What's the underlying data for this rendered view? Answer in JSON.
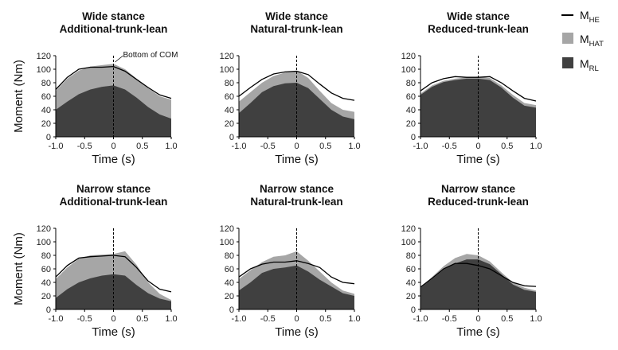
{
  "chart_data": {
    "type": "area",
    "ylabel": "Moment (Nm)",
    "xlabel": "Time (s)",
    "ylim": [
      0,
      120
    ],
    "xlim": [
      -1.0,
      1.0
    ],
    "yticks": [
      "0",
      "20",
      "40",
      "60",
      "80",
      "100",
      "120"
    ],
    "xticks": [
      "-1.0",
      "-0.5",
      "0",
      "0.5",
      "1.0"
    ],
    "legend": [
      {
        "name": "M",
        "sub": "HE",
        "style": "line",
        "color": "#000000"
      },
      {
        "name": "M",
        "sub": "HAT",
        "style": "fill",
        "color": "#a6a6a6"
      },
      {
        "name": "M",
        "sub": "RL",
        "style": "fill",
        "color": "#404040"
      }
    ],
    "annotation": {
      "text": "Bottom of COM",
      "x": 0.0
    },
    "x": [
      -1.0,
      -0.8,
      -0.6,
      -0.4,
      -0.2,
      0.0,
      0.2,
      0.4,
      0.6,
      0.8,
      1.0
    ],
    "panels": [
      {
        "id": "wide-additional",
        "title1": "Wide stance",
        "title2": "Additional-trunk-lean",
        "M_HE": [
          70,
          88,
          100,
          103,
          103,
          104,
          97,
          85,
          73,
          62,
          57
        ],
        "M_TOTAL": [
          68,
          86,
          98,
          104,
          106,
          108,
          100,
          86,
          72,
          60,
          55
        ],
        "M_RL": [
          40,
          52,
          63,
          70,
          74,
          76,
          70,
          58,
          44,
          33,
          27
        ]
      },
      {
        "id": "wide-natural",
        "title1": "Wide stance",
        "title2": "Natural-trunk-lean",
        "M_HE": [
          60,
          73,
          85,
          93,
          96,
          97,
          92,
          78,
          65,
          57,
          54
        ],
        "M_TOTAL": [
          52,
          66,
          80,
          90,
          95,
          98,
          87,
          68,
          50,
          40,
          37
        ],
        "M_RL": [
          35,
          50,
          66,
          75,
          79,
          80,
          72,
          56,
          40,
          30,
          26
        ]
      },
      {
        "id": "wide-reduced",
        "title1": "Wide stance",
        "title2": "Reduced-trunk-lean",
        "M_HE": [
          68,
          80,
          86,
          89,
          88,
          88,
          89,
          80,
          68,
          57,
          53
        ],
        "M_TOTAL": [
          64,
          76,
          83,
          86,
          88,
          89,
          87,
          76,
          62,
          50,
          47
        ],
        "M_RL": [
          62,
          74,
          81,
          84,
          86,
          86,
          84,
          73,
          58,
          46,
          43
        ]
      },
      {
        "id": "narrow-additional",
        "title1": "Narrow stance",
        "title2": "Additional-trunk-lean",
        "M_HE": [
          48,
          65,
          76,
          78,
          79,
          80,
          78,
          62,
          42,
          30,
          26
        ],
        "M_TOTAL": [
          45,
          62,
          75,
          80,
          81,
          82,
          86,
          66,
          40,
          23,
          14
        ],
        "M_RL": [
          17,
          30,
          40,
          46,
          50,
          52,
          50,
          36,
          24,
          16,
          12
        ]
      },
      {
        "id": "narrow-natural",
        "title1": "Narrow stance",
        "title2": "Natural-trunk-lean",
        "M_HE": [
          48,
          60,
          67,
          70,
          70,
          72,
          68,
          62,
          48,
          40,
          38
        ],
        "M_TOTAL": [
          45,
          58,
          70,
          78,
          80,
          86,
          72,
          56,
          40,
          28,
          23
        ],
        "M_RL": [
          28,
          40,
          54,
          60,
          62,
          65,
          56,
          44,
          34,
          24,
          20
        ]
      },
      {
        "id": "narrow-reduced",
        "title1": "Narrow stance",
        "title2": "Reduced-trunk-lean",
        "M_HE": [
          33,
          46,
          60,
          68,
          68,
          65,
          60,
          50,
          40,
          35,
          34
        ],
        "M_TOTAL": [
          33,
          48,
          64,
          76,
          82,
          80,
          71,
          55,
          40,
          32,
          28
        ],
        "M_RL": [
          32,
          45,
          59,
          68,
          74,
          74,
          67,
          52,
          37,
          29,
          26
        ]
      }
    ]
  }
}
